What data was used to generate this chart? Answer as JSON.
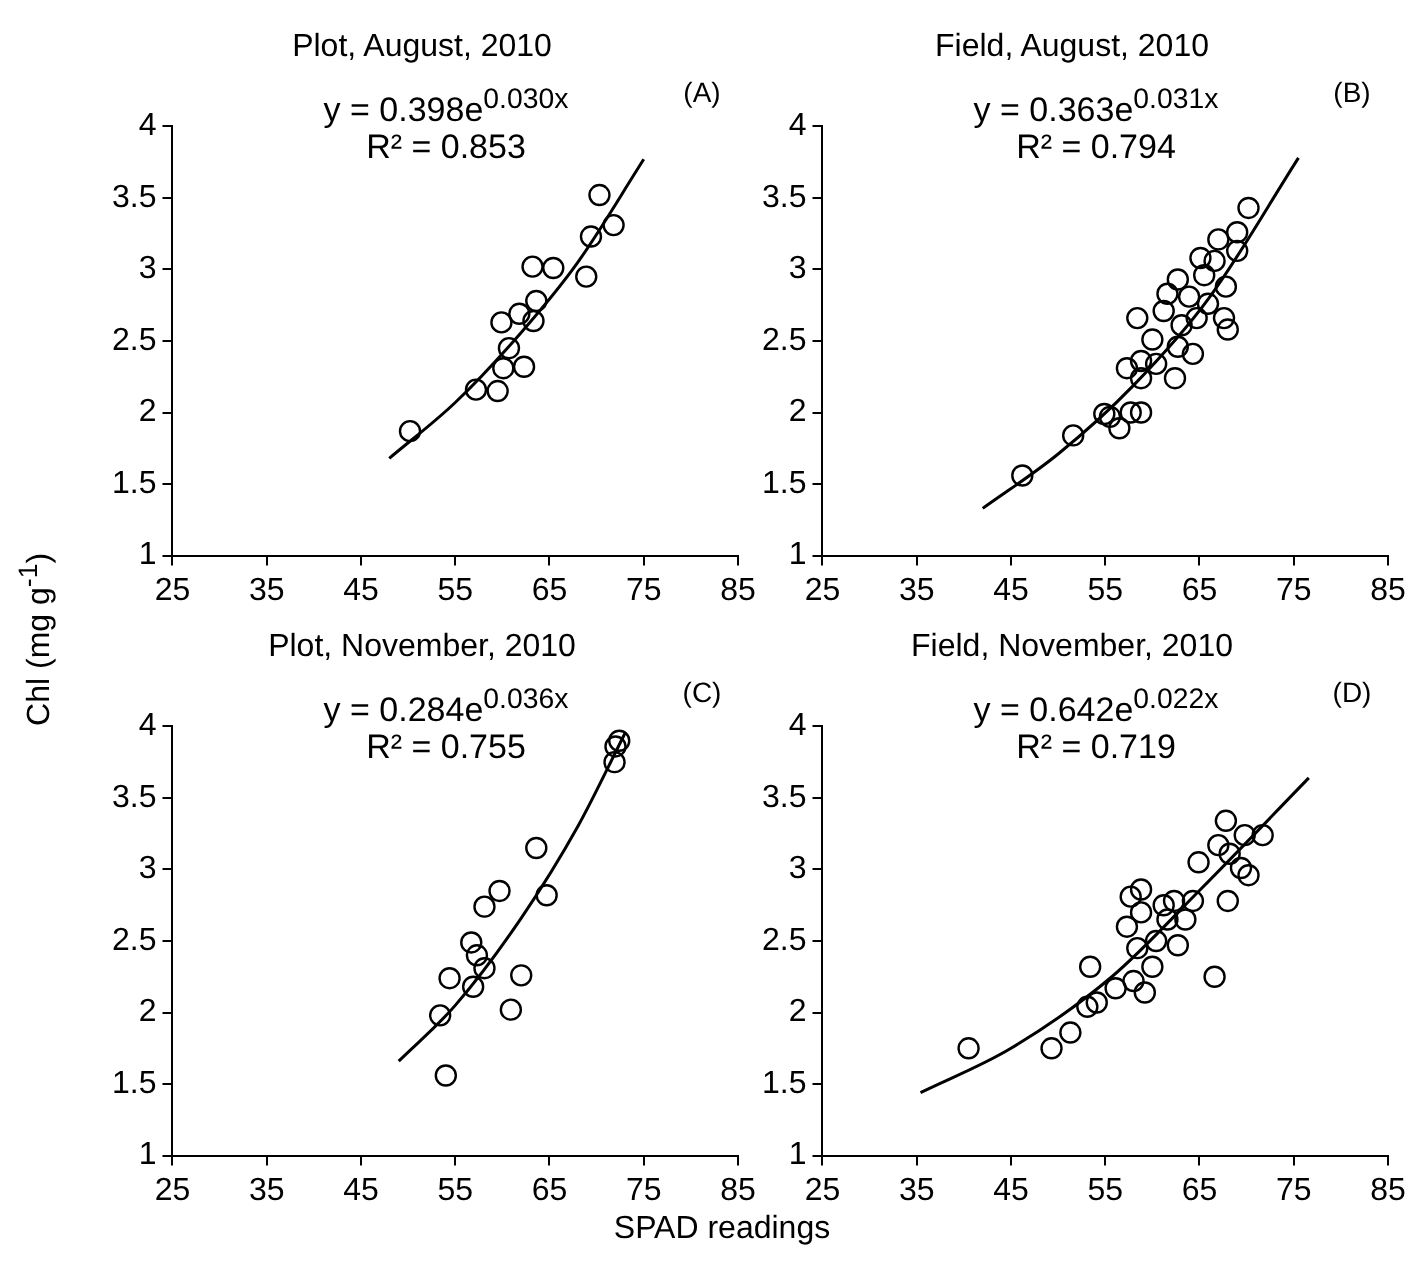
{
  "chart_data": [
    {
      "type": "scatter",
      "title": "Plot, August, 2010",
      "ylabel": "Chl (mg g$^{-1}$)",
      "annotations": [
        "y = 0.398e$^{0.030x}$",
        "R² = 0.853",
        "(A)"
      ],
      "xlim": [
        25,
        85
      ],
      "xticks": [
        25,
        35,
        45,
        55,
        65,
        75,
        85
      ],
      "ylim": [
        1,
        4
      ],
      "yticks": [
        1,
        1.5,
        2,
        2.5,
        3,
        3.5,
        4
      ],
      "grid": false,
      "legend": false,
      "series": [
        {
          "type": "scatter",
          "marker": "circle",
          "color": "#000000",
          "x": [
            50.2,
            57.2,
            59.5,
            59.9,
            60.7,
            60.1,
            62.3,
            61.8,
            63.3,
            63.6,
            63.2,
            65.4,
            68.9,
            69.4,
            70.3,
            71.8
          ],
          "values": [
            1.87,
            2.16,
            2.15,
            2.63,
            2.45,
            2.31,
            2.32,
            2.69,
            2.64,
            2.78,
            3.02,
            3.01,
            2.95,
            3.23,
            3.52,
            3.31
          ]
        },
        {
          "type": "line",
          "marker": "none",
          "color": "#000000",
          "x": [
            48,
            55,
            62,
            68,
            75
          ],
          "values": [
            1.68,
            2.07,
            2.56,
            3.05,
            3.77
          ]
        }
      ]
    },
    {
      "type": "scatter",
      "title": "Field, August, 2010",
      "annotations": [
        "y = 0.363e$^{0.031x}$",
        "R² = 0.794",
        "(B)"
      ],
      "xlim": [
        25,
        85
      ],
      "xticks": [
        25,
        35,
        45,
        55,
        65,
        75,
        85
      ],
      "ylim": [
        1,
        4
      ],
      "yticks": [
        1,
        1.5,
        2,
        2.5,
        3,
        3.5,
        4
      ],
      "grid": false,
      "legend": false,
      "series": [
        {
          "type": "scatter",
          "marker": "circle",
          "color": "#000000",
          "x": [
            46.2,
            51.6,
            54.9,
            55.5,
            56.5,
            57.7,
            58.8,
            57.3,
            58.8,
            58.4,
            58.8,
            60.0,
            60.4,
            61.2,
            61.6,
            62.4,
            62.7,
            62.7,
            63.1,
            63.9,
            64.3,
            64.7,
            65.1,
            65.5,
            65.9,
            66.6,
            67.0,
            67.6,
            67.8,
            68.0,
            69.0,
            70.2,
            69.0
          ],
          "values": [
            1.56,
            1.84,
            1.99,
            1.97,
            1.89,
            2.0,
            2.0,
            2.31,
            2.36,
            2.66,
            2.24,
            2.51,
            2.34,
            2.71,
            2.83,
            2.24,
            2.46,
            2.93,
            2.61,
            2.81,
            2.41,
            2.66,
            3.08,
            2.96,
            2.76,
            3.06,
            3.21,
            2.66,
            2.88,
            2.58,
            3.26,
            3.43,
            3.13
          ]
        },
        {
          "type": "line",
          "marker": "none",
          "color": "#000000",
          "x": [
            42,
            50,
            58,
            66,
            75.5
          ],
          "values": [
            1.33,
            1.71,
            2.19,
            2.8,
            3.78
          ]
        }
      ]
    },
    {
      "type": "scatter",
      "title": "Plot, November, 2010",
      "annotations": [
        "y = 0.284e$^{0.036x}$",
        "R² = 0.755",
        "(C)"
      ],
      "xlim": [
        25,
        85
      ],
      "xticks": [
        25,
        35,
        45,
        55,
        65,
        75,
        85
      ],
      "ylim": [
        1,
        4
      ],
      "yticks": [
        1,
        1.5,
        2,
        2.5,
        3,
        3.5,
        4
      ],
      "grid": false,
      "legend": false,
      "series": [
        {
          "type": "scatter",
          "marker": "circle",
          "color": "#000000",
          "x": [
            53.4,
            54.0,
            54.4,
            56.7,
            56.9,
            57.3,
            58.1,
            58.1,
            59.7,
            60.9,
            62.0,
            63.6,
            64.7,
            71.9,
            72.0,
            72.4
          ],
          "values": [
            1.98,
            1.56,
            2.24,
            2.49,
            2.18,
            2.4,
            2.31,
            2.74,
            2.85,
            2.02,
            2.26,
            3.15,
            2.82,
            3.75,
            3.86,
            3.9
          ]
        },
        {
          "type": "line",
          "marker": "none",
          "color": "#000000",
          "x": [
            49,
            55,
            62,
            68,
            73
          ],
          "values": [
            1.66,
            2.05,
            2.66,
            3.3,
            3.95
          ]
        }
      ]
    },
    {
      "type": "scatter",
      "title": "Field, November, 2010",
      "xlabel": "SPAD readings",
      "annotations": [
        "y = 0.642e$^{0.022x}$",
        "R² = 0.719",
        "(D)"
      ],
      "xlim": [
        25,
        85
      ],
      "xticks": [
        25,
        35,
        45,
        55,
        65,
        75,
        85
      ],
      "ylim": [
        1,
        4
      ],
      "yticks": [
        1,
        1.5,
        2,
        2.5,
        3,
        3.5,
        4
      ],
      "grid": false,
      "legend": false,
      "series": [
        {
          "type": "scatter",
          "marker": "circle",
          "color": "#000000",
          "x": [
            40.5,
            49.3,
            51.3,
            53.1,
            53.4,
            54.1,
            56.1,
            57.3,
            57.7,
            58.0,
            58.4,
            58.8,
            59.2,
            60.0,
            60.4,
            61.2,
            61.6,
            62.3,
            62.7,
            63.5,
            64.3,
            64.9,
            66.6,
            67.0,
            67.8,
            68.0,
            68.2,
            69.4,
            70.2,
            69.8,
            71.7,
            58.8
          ],
          "values": [
            1.75,
            1.75,
            1.86,
            2.04,
            2.32,
            2.07,
            2.17,
            2.6,
            2.81,
            2.22,
            2.45,
            2.7,
            2.14,
            2.32,
            2.5,
            2.75,
            2.65,
            2.78,
            2.47,
            2.65,
            2.78,
            3.05,
            2.25,
            3.17,
            3.34,
            2.78,
            3.11,
            3.01,
            2.96,
            3.24,
            3.24,
            2.86
          ]
        },
        {
          "type": "line",
          "marker": "none",
          "color": "#000000",
          "x": [
            35.4,
            45,
            55.7,
            65.1,
            76.6
          ],
          "values": [
            1.44,
            1.75,
            2.25,
            2.86,
            3.64
          ]
        }
      ]
    }
  ]
}
